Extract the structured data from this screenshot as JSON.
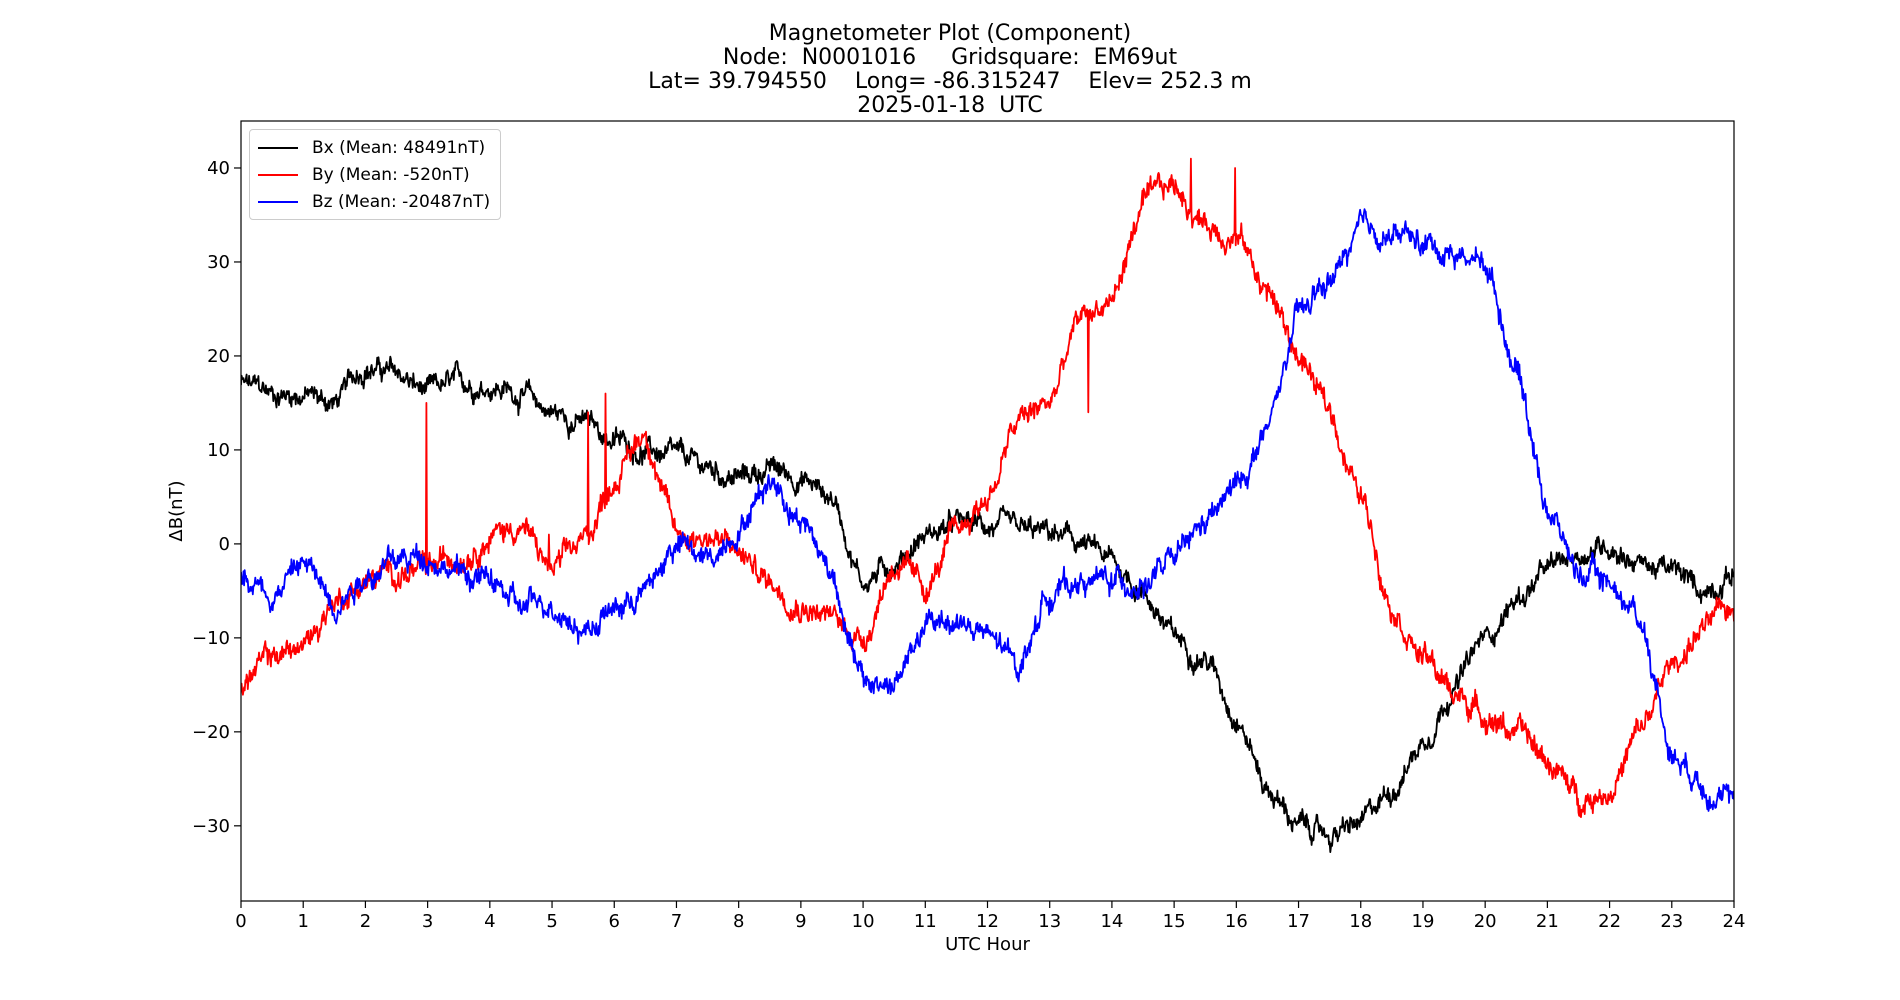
{
  "chart_data": {
    "type": "line",
    "title_lines": [
      "Magnetometer Plot (Component)",
      "Node:  N0001016     Gridsquare:  EM69ut",
      "Lat= 39.794550    Long= -86.315247    Elev= 252.3 m",
      "2025-01-18  UTC"
    ],
    "xlabel": "UTC Hour",
    "ylabel": "ΔB(nT)",
    "xlim": [
      0,
      24
    ],
    "ylim": [
      -38,
      45
    ],
    "xticks": [
      0,
      1,
      2,
      3,
      4,
      5,
      6,
      7,
      8,
      9,
      10,
      11,
      12,
      13,
      14,
      15,
      16,
      17,
      18,
      19,
      20,
      21,
      22,
      23,
      24
    ],
    "yticks": [
      -30,
      -20,
      -10,
      0,
      10,
      20,
      30,
      40
    ],
    "ytick_labels": [
      "−30",
      "−20",
      "−10",
      "0",
      "10",
      "20",
      "30",
      "40"
    ],
    "grid": false,
    "legend_position": "upper-left",
    "x": [
      0,
      0.5,
      1,
      1.5,
      2,
      2.5,
      3,
      3.5,
      4,
      4.5,
      5,
      5.5,
      6,
      6.5,
      7,
      7.5,
      8,
      8.5,
      9,
      9.5,
      10,
      10.5,
      11,
      11.5,
      12,
      12.5,
      13,
      13.5,
      14,
      14.5,
      15,
      15.5,
      16,
      16.5,
      17,
      17.5,
      18,
      18.5,
      19,
      19.5,
      20,
      20.5,
      21,
      21.5,
      22,
      22.5,
      23,
      23.5,
      24
    ],
    "series": [
      {
        "name": "Bx (Mean: 48491nT)",
        "color": "#000000",
        "values": [
          17,
          16,
          16,
          15,
          19,
          18,
          16,
          17,
          17,
          16,
          14,
          13,
          11,
          10,
          9,
          8,
          7,
          8,
          7,
          5,
          -4,
          -2,
          1,
          2,
          2,
          1,
          1,
          0,
          -2,
          -5,
          -10,
          -12,
          -18,
          -26,
          -30,
          -31,
          -30,
          -26,
          -21,
          -15,
          -10,
          -6,
          -3,
          -1,
          0,
          -2,
          -3,
          -5,
          -3
        ],
        "noise": 0.8
      },
      {
        "name": "By (Mean: -520nT)",
        "color": "#ff0000",
        "values": [
          -15,
          -12,
          -11,
          -6,
          -4,
          -3,
          -3,
          -1,
          1,
          2,
          -3,
          0,
          7,
          12,
          1,
          1,
          -1,
          -4,
          -6,
          -8,
          -10,
          -2,
          -5,
          1,
          5,
          13,
          15,
          24,
          26,
          36,
          38,
          34,
          33,
          27,
          20,
          14,
          5,
          -6,
          -12,
          -16,
          -18,
          -20,
          -23,
          -27,
          -26,
          -20,
          -13,
          -9,
          -7
        ],
        "noise": 0.9,
        "spikes": [
          [
            2.98,
            15
          ],
          [
            4.95,
            1
          ],
          [
            5.58,
            14
          ],
          [
            5.86,
            16
          ],
          [
            15.27,
            41
          ],
          [
            15.98,
            40
          ],
          [
            13.62,
            14
          ]
        ]
      },
      {
        "name": "Bz (Mean: -20487nT)",
        "color": "#0000ff",
        "values": [
          -3,
          -5,
          -2,
          -6,
          -3,
          -2,
          -1,
          -3,
          -4,
          -7,
          -6,
          -9,
          -7,
          -5,
          0,
          -2,
          2,
          7,
          3,
          -3,
          -15,
          -15,
          -9,
          -8,
          -10,
          -13,
          -5,
          -4,
          -4,
          -4,
          -2,
          2,
          6,
          12,
          24,
          28,
          33,
          33,
          32,
          31,
          30,
          19,
          4,
          -3,
          -4,
          -8,
          -22,
          -25,
          -28
        ],
        "noise": 0.9
      }
    ]
  }
}
